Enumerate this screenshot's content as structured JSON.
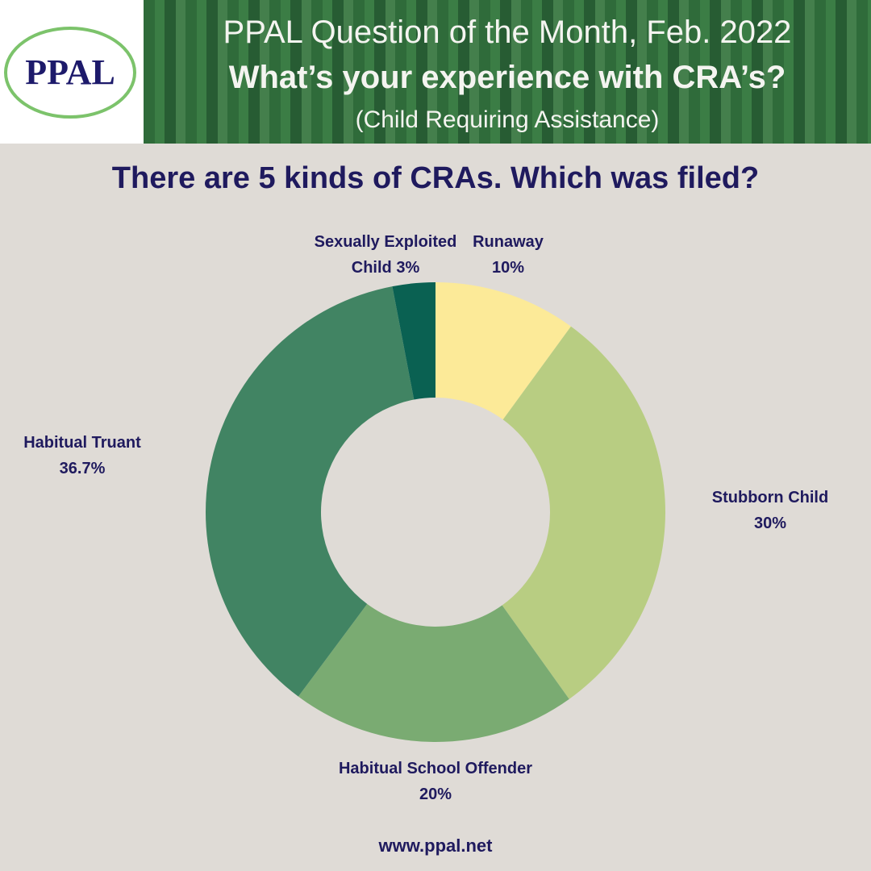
{
  "header": {
    "logo": "PPAL",
    "title": "PPAL Question of the Month, Feb. 2022",
    "subtitle": "What’s your experience with CRA’s?",
    "note": "(Child Requiring Assistance)"
  },
  "chart_data": {
    "type": "donut",
    "title": "There are 5 kinds of CRAs. Which was filed?",
    "categories": [
      "Runaway",
      "Stubborn Child",
      "Habitual School Offender",
      "Habitual Truant",
      "Sexually Exploited Child"
    ],
    "values": [
      10,
      30,
      20,
      36.7,
      3
    ],
    "value_labels": [
      "10%",
      "30%",
      "20%",
      "36.7%",
      "3%"
    ],
    "colors": [
      "#fcea98",
      "#b8cd82",
      "#7aab72",
      "#418463",
      "#0a6152"
    ]
  },
  "footer": "www.ppal.net"
}
